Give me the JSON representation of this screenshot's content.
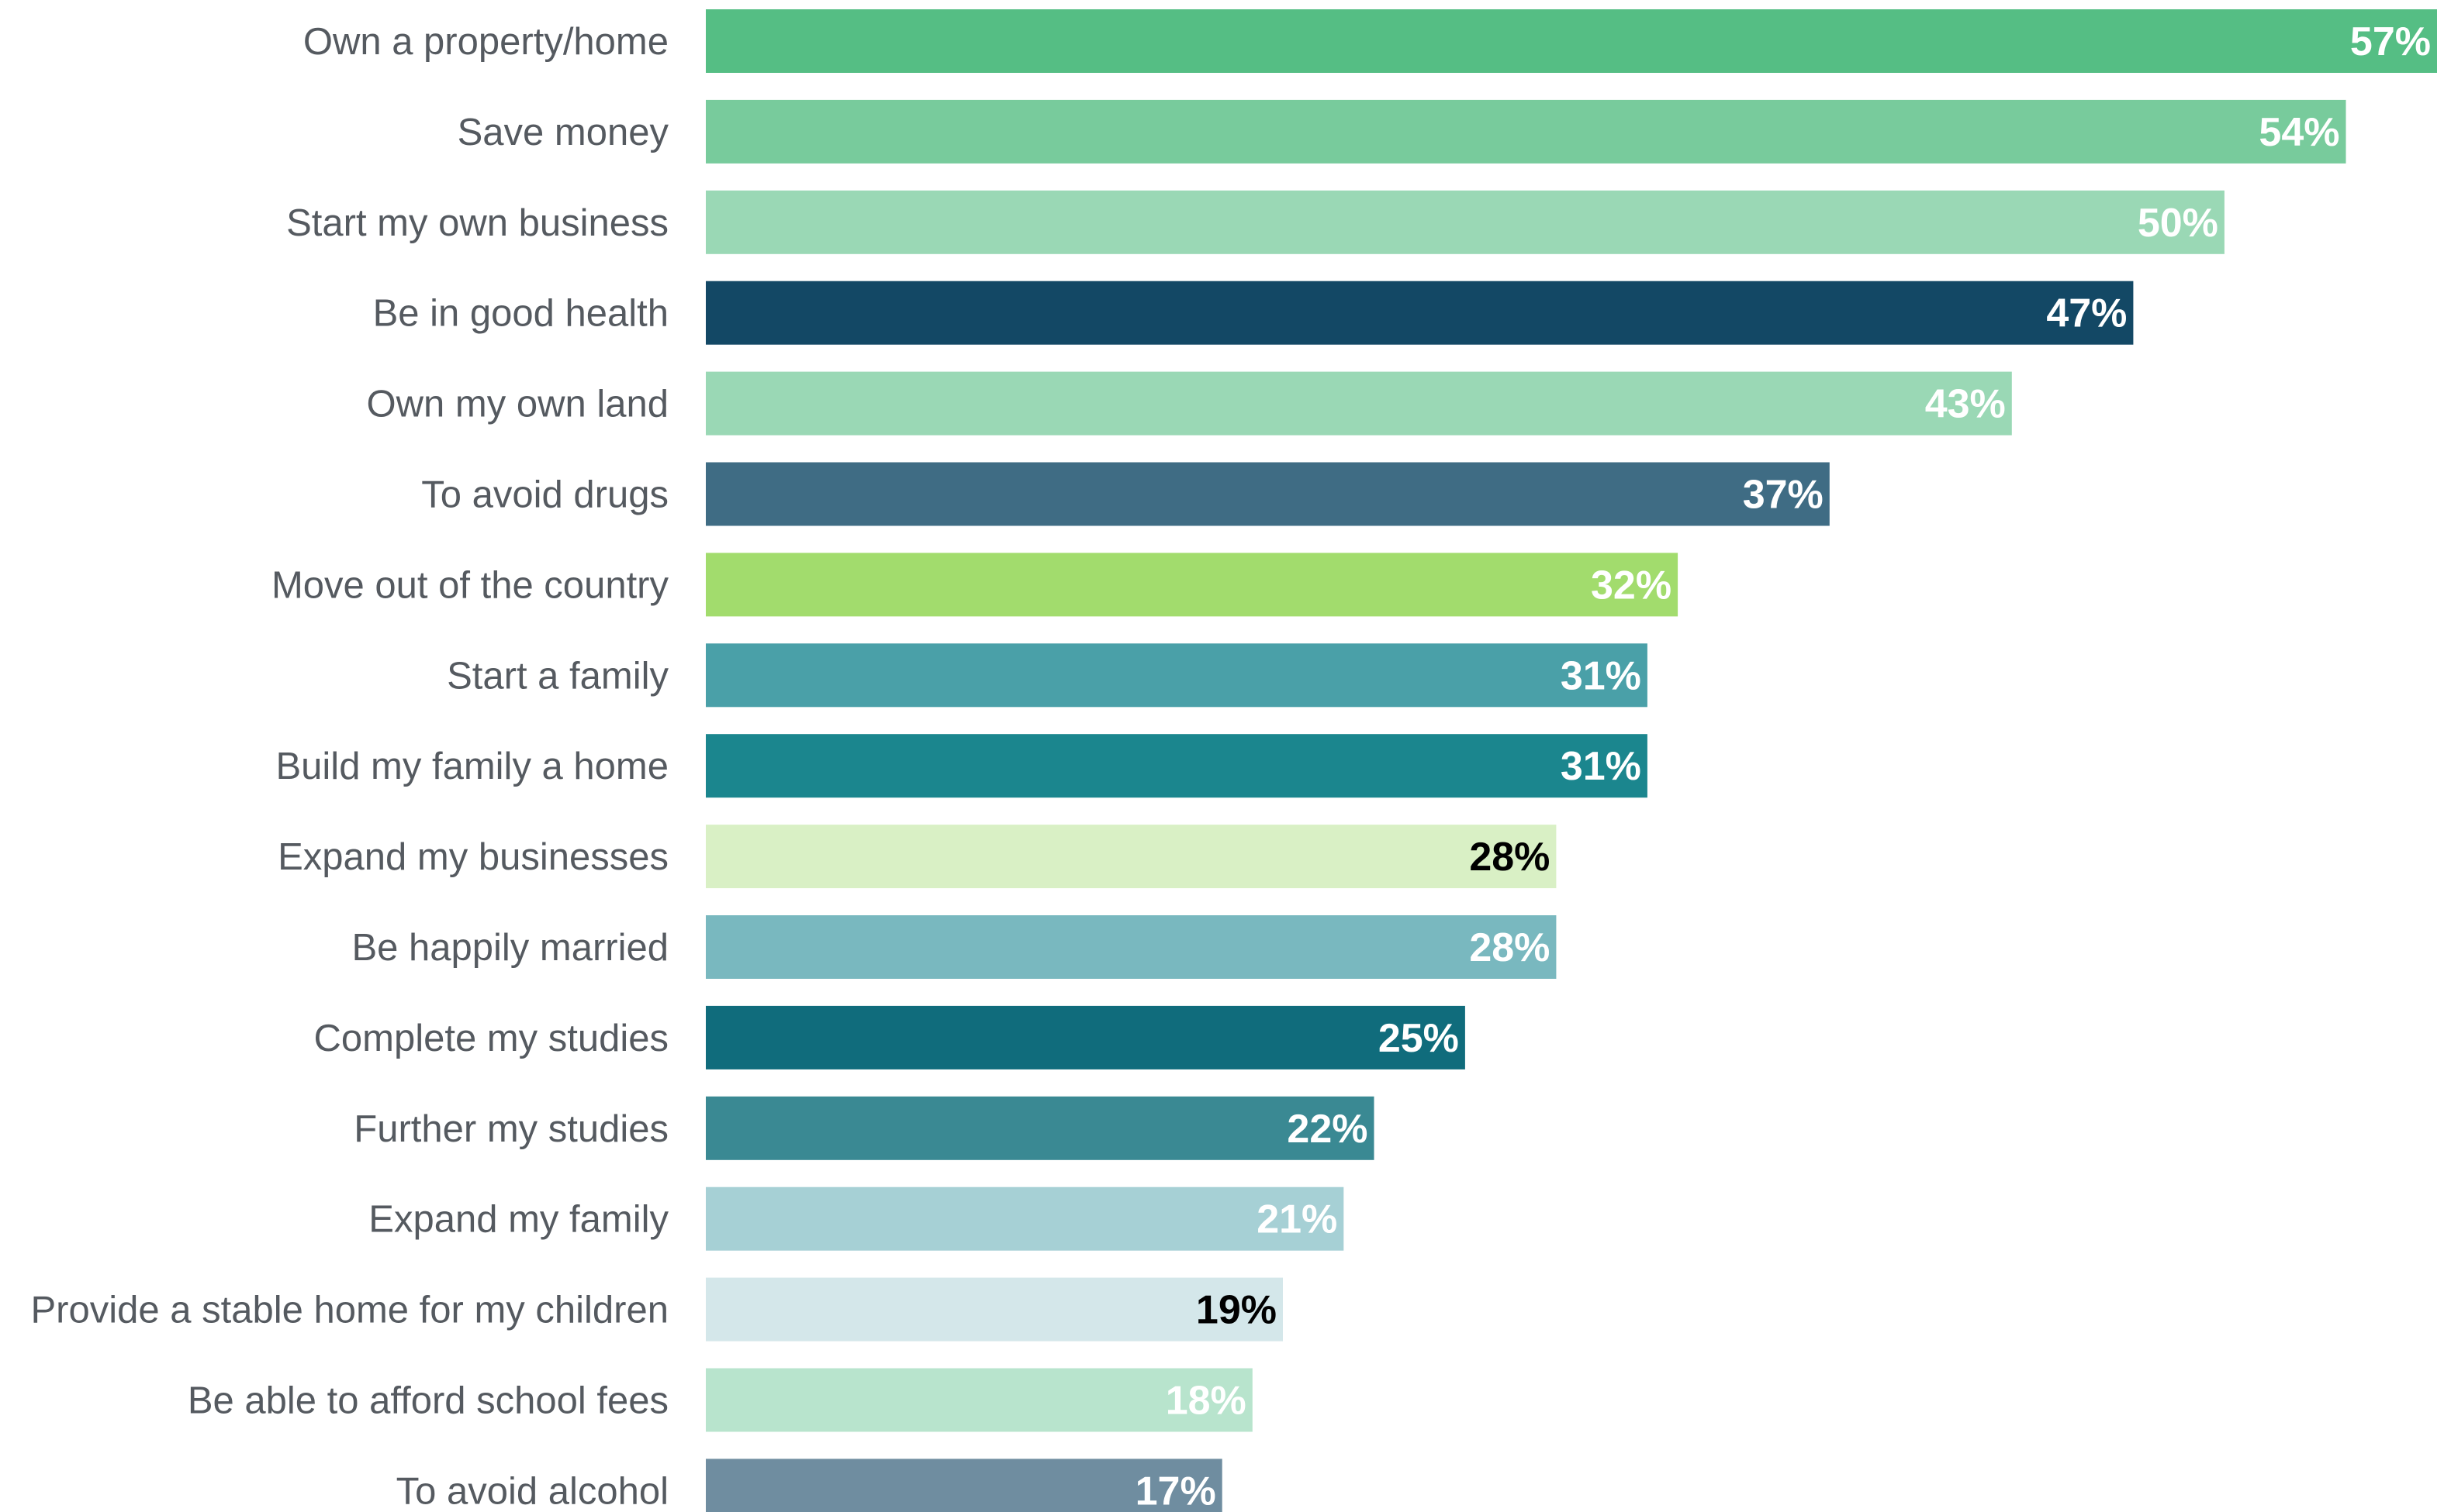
{
  "chart_data": {
    "type": "bar",
    "orientation": "horizontal",
    "value_unit": "%",
    "xlim": [
      0,
      57
    ],
    "grid": false,
    "legend": "none",
    "categories": [
      "Own a property/home",
      "Save money",
      "Start my own business",
      "Be in good health",
      "Own my own land",
      "To avoid drugs",
      "Move out of the country",
      "Start a family",
      "Build my family a home",
      "Expand my businesses",
      "Be happily married",
      "Complete my studies",
      "Further my studies",
      "Expand my family",
      "Provide a stable home for my children",
      "Be able to afford school fees",
      "To avoid alcohol"
    ],
    "values": [
      57,
      54,
      50,
      47,
      43,
      37,
      32,
      31,
      31,
      28,
      28,
      25,
      22,
      21,
      19,
      18,
      17
    ],
    "value_labels": [
      "57%",
      "54%",
      "50%",
      "47%",
      "43%",
      "37%",
      "32%",
      "31%",
      "31%",
      "28%",
      "28%",
      "25%",
      "22%",
      "21%",
      "19%",
      "18%",
      "17%"
    ],
    "bar_colors": [
      "#55be84",
      "#78cb9c",
      "#9ad8b5",
      "#134865",
      "#9ad8b5",
      "#3f6c84",
      "#a2dc6d",
      "#4aa0a8",
      "#1b868e",
      "#d9f0c5",
      "#79b8bf",
      "#106c7c",
      "#3a8993",
      "#a6d0d5",
      "#d4e7ea",
      "#b8e4cd",
      "#6f8da0"
    ],
    "label_colors": [
      "#ffffff",
      "#ffffff",
      "#ffffff",
      "#ffffff",
      "#ffffff",
      "#ffffff",
      "#ffffff",
      "#ffffff",
      "#ffffff",
      "#000000",
      "#ffffff",
      "#ffffff",
      "#ffffff",
      "#ffffff",
      "#000000",
      "#ffffff",
      "#ffffff"
    ]
  }
}
